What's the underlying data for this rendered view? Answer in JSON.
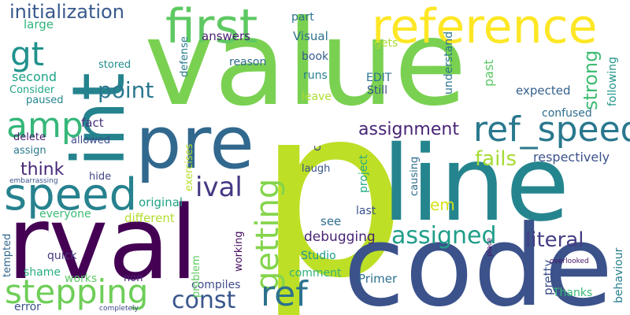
{
  "words": [
    {
      "text": "value",
      "color": "#7ad151"
    },
    {
      "text": "p",
      "color": "#bddf26"
    },
    {
      "text": "line",
      "color": "#25858e"
    },
    {
      "text": "code",
      "color": "#3b528b"
    },
    {
      "text": "rval",
      "color": "#440154"
    },
    {
      "text": "int",
      "color": "#25838e"
    },
    {
      "text": "pre",
      "color": "#31688e"
    },
    {
      "text": "reference",
      "color": "#fde725"
    },
    {
      "text": "first",
      "color": "#5ec962"
    },
    {
      "text": "speed",
      "color": "#26828e"
    },
    {
      "text": "stepping",
      "color": "#6ece58"
    },
    {
      "text": "ref_speed",
      "color": "#2a788e"
    },
    {
      "text": "amp",
      "color": "#35b779"
    },
    {
      "text": "gt",
      "color": "#21918c"
    },
    {
      "text": "getting",
      "color": "#84d44b"
    },
    {
      "text": "ref",
      "color": "#2c728e"
    },
    {
      "text": "assigned",
      "color": "#1f9e89"
    },
    {
      "text": "const",
      "color": "#39568c"
    },
    {
      "text": "initialization",
      "color": "#38598c"
    },
    {
      "text": "ival",
      "color": "#443983"
    },
    {
      "text": "point",
      "color": "#2a788e"
    },
    {
      "text": "assignment",
      "color": "#482576"
    },
    {
      "text": "fails",
      "color": "#a5db36"
    },
    {
      "text": "think",
      "color": "#482878"
    },
    {
      "text": "literal",
      "color": "#433e85"
    },
    {
      "text": "strong",
      "color": "#3fbc73"
    },
    {
      "text": "em",
      "color": "#d8e219"
    },
    {
      "text": "second",
      "color": "#1fa287"
    },
    {
      "text": "debugging",
      "color": "#482374"
    },
    {
      "text": "respectively",
      "color": "#3b528b"
    },
    {
      "text": "Primer",
      "color": "#2d708e"
    },
    {
      "text": "answers",
      "color": "#481f70"
    },
    {
      "text": "see",
      "color": "#2e6f8e"
    },
    {
      "text": "fact",
      "color": "#46337f"
    },
    {
      "text": "large",
      "color": "#2fb47c"
    },
    {
      "text": "part",
      "color": "#2c728e"
    },
    {
      "text": "Visual",
      "color": "#2c718e"
    },
    {
      "text": "runs",
      "color": "#277f8e"
    },
    {
      "text": "EDIT",
      "color": "#2d718e"
    },
    {
      "text": "Still",
      "color": "#3a538b"
    },
    {
      "text": "expected",
      "color": "#35608d"
    },
    {
      "text": "confused",
      "color": "#2e6d8e"
    },
    {
      "text": "original",
      "color": "#20a386"
    },
    {
      "text": "different",
      "color": "#b2dd2d"
    },
    {
      "text": "everyone",
      "color": "#3bbb75"
    },
    {
      "text": "last",
      "color": "#3b518b"
    },
    {
      "text": "quick",
      "color": "#453781"
    },
    {
      "text": "comment",
      "color": "#2fb47c"
    },
    {
      "text": "Studio",
      "color": "#1f9a8a"
    },
    {
      "text": "works",
      "color": "#5cc863"
    },
    {
      "text": "compiles",
      "color": "#3e4c8a"
    },
    {
      "text": "Thanks",
      "color": "#38b977"
    },
    {
      "text": "shame",
      "color": "#28ae80"
    },
    {
      "text": "error",
      "color": "#3b528b"
    },
    {
      "text": "book",
      "color": "#375b8d"
    },
    {
      "text": "reason",
      "color": "#306a8e"
    },
    {
      "text": "stored",
      "color": "#228c8d"
    },
    {
      "text": "paused",
      "color": "#24868e"
    },
    {
      "text": "Consider",
      "color": "#22a884"
    },
    {
      "text": "leave",
      "color": "#addc30"
    },
    {
      "text": "gets",
      "color": "#a8db34"
    },
    {
      "text": "allowed",
      "color": "#3e4989"
    },
    {
      "text": "delete",
      "color": "#481d6f"
    },
    {
      "text": "assign",
      "color": "#2a788e"
    },
    {
      "text": "hide",
      "color": "#404688"
    },
    {
      "text": "laugh",
      "color": "#3a538b"
    },
    {
      "text": "causing",
      "color": "#2f6b8e"
    },
    {
      "text": "non",
      "color": "#482173"
    },
    {
      "text": "understand",
      "color": "#2a768e"
    },
    {
      "text": "past",
      "color": "#5cc863"
    },
    {
      "text": "defense",
      "color": "#297b8e"
    },
    {
      "text": "exercises",
      "color": "#b5de2b"
    },
    {
      "text": "following",
      "color": "#1f968b"
    },
    {
      "text": "behaviour",
      "color": "#277e8e"
    },
    {
      "text": "pretty",
      "color": "#3d4e8a"
    },
    {
      "text": "working",
      "color": "#470e61"
    },
    {
      "text": "problem",
      "color": "#5ec962"
    },
    {
      "text": "project",
      "color": "#25ab82"
    },
    {
      "text": "tempted",
      "color": "#31678e"
    },
    {
      "text": "c",
      "color": "#3e4a89"
    },
    {
      "text": "place",
      "color": "#471164"
    },
    {
      "text": "overlooked",
      "color": "#481467"
    },
    {
      "text": "embarrassing",
      "color": "#3a548c"
    },
    {
      "text": "completely",
      "color": "#3f4889"
    }
  ]
}
